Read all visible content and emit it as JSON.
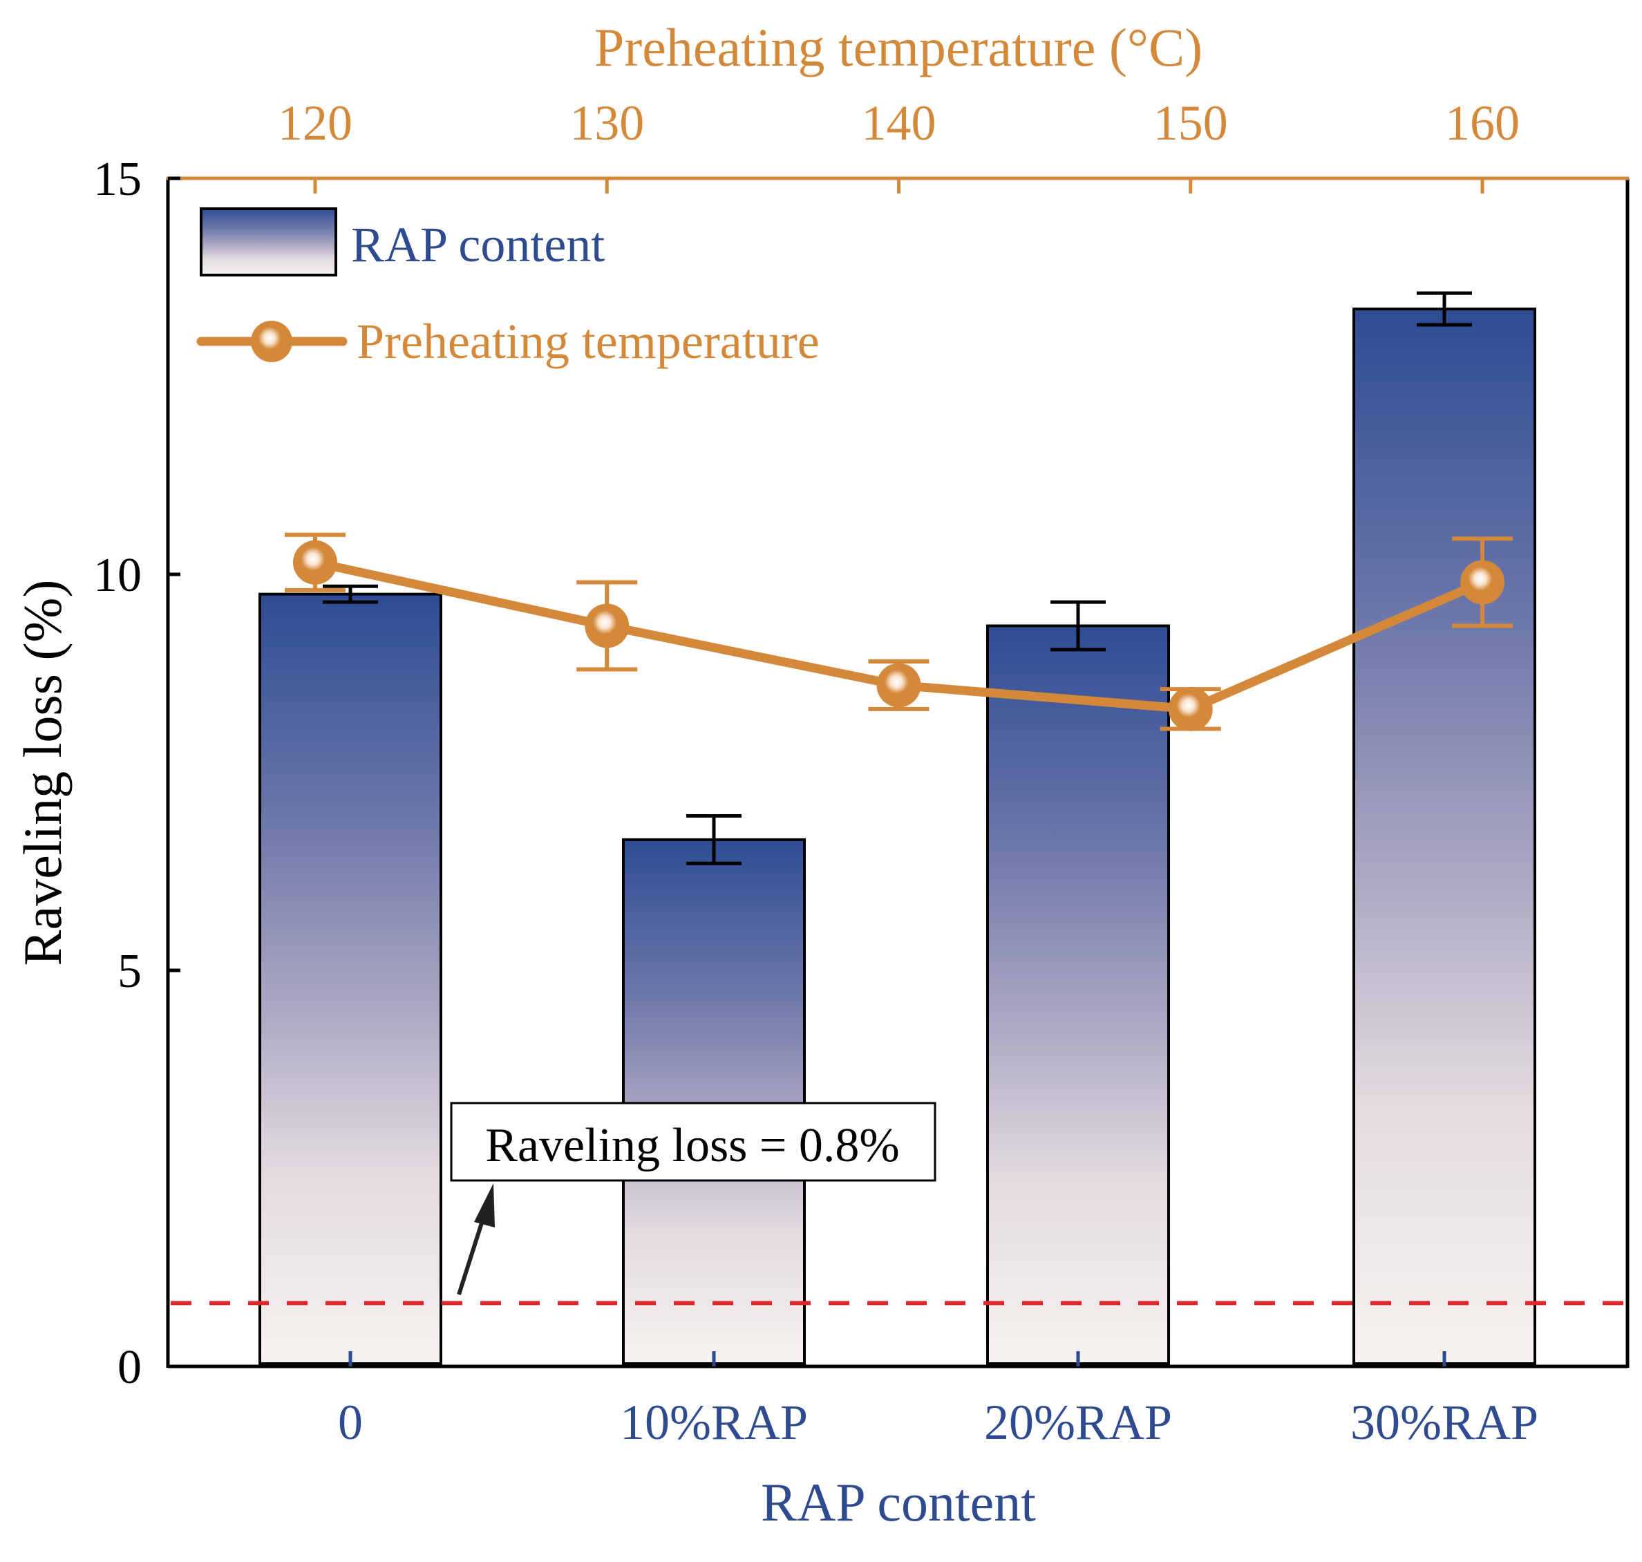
{
  "colors": {
    "bar_top": "#2e4d95",
    "bar_bottom": "#f6f3ef",
    "bar_stroke": "#000000",
    "bottom_axis": "#2f4b8f",
    "top_axis": "#d4883a",
    "line": "#d4883a",
    "threshold": "#e0272e",
    "axis": "#000000"
  },
  "chart_data": {
    "type": "bar",
    "title": "",
    "xlabel": "RAP content",
    "ylabel": "Raveling loss (%)",
    "ylim": [
      0,
      15
    ],
    "yticks": [
      0,
      5,
      10,
      15
    ],
    "categories": [
      "0",
      "10%RAP",
      "20%RAP",
      "30%RAP"
    ],
    "bar_series": {
      "name": "RAP content",
      "values": [
        9.75,
        6.65,
        9.35,
        13.35
      ],
      "errors": [
        0.1,
        0.3,
        0.3,
        0.2
      ]
    },
    "top_axis": {
      "label": "Preheating temperature (°C)",
      "ticks": [
        120,
        130,
        140,
        150,
        160
      ],
      "xlim": [
        115,
        165
      ]
    },
    "line_series": {
      "name": "Preheating temperature",
      "x": [
        120,
        130,
        140,
        150,
        160
      ],
      "values": [
        10.15,
        9.35,
        8.6,
        8.3,
        9.9
      ],
      "errors": [
        0.35,
        0.55,
        0.3,
        0.25,
        0.55
      ]
    },
    "threshold": {
      "value": 0.8,
      "label": "Raveling loss = 0.8%"
    },
    "legend": {
      "position": "top-left",
      "entries": [
        "RAP content",
        "Preheating temperature"
      ]
    },
    "grid": false
  }
}
